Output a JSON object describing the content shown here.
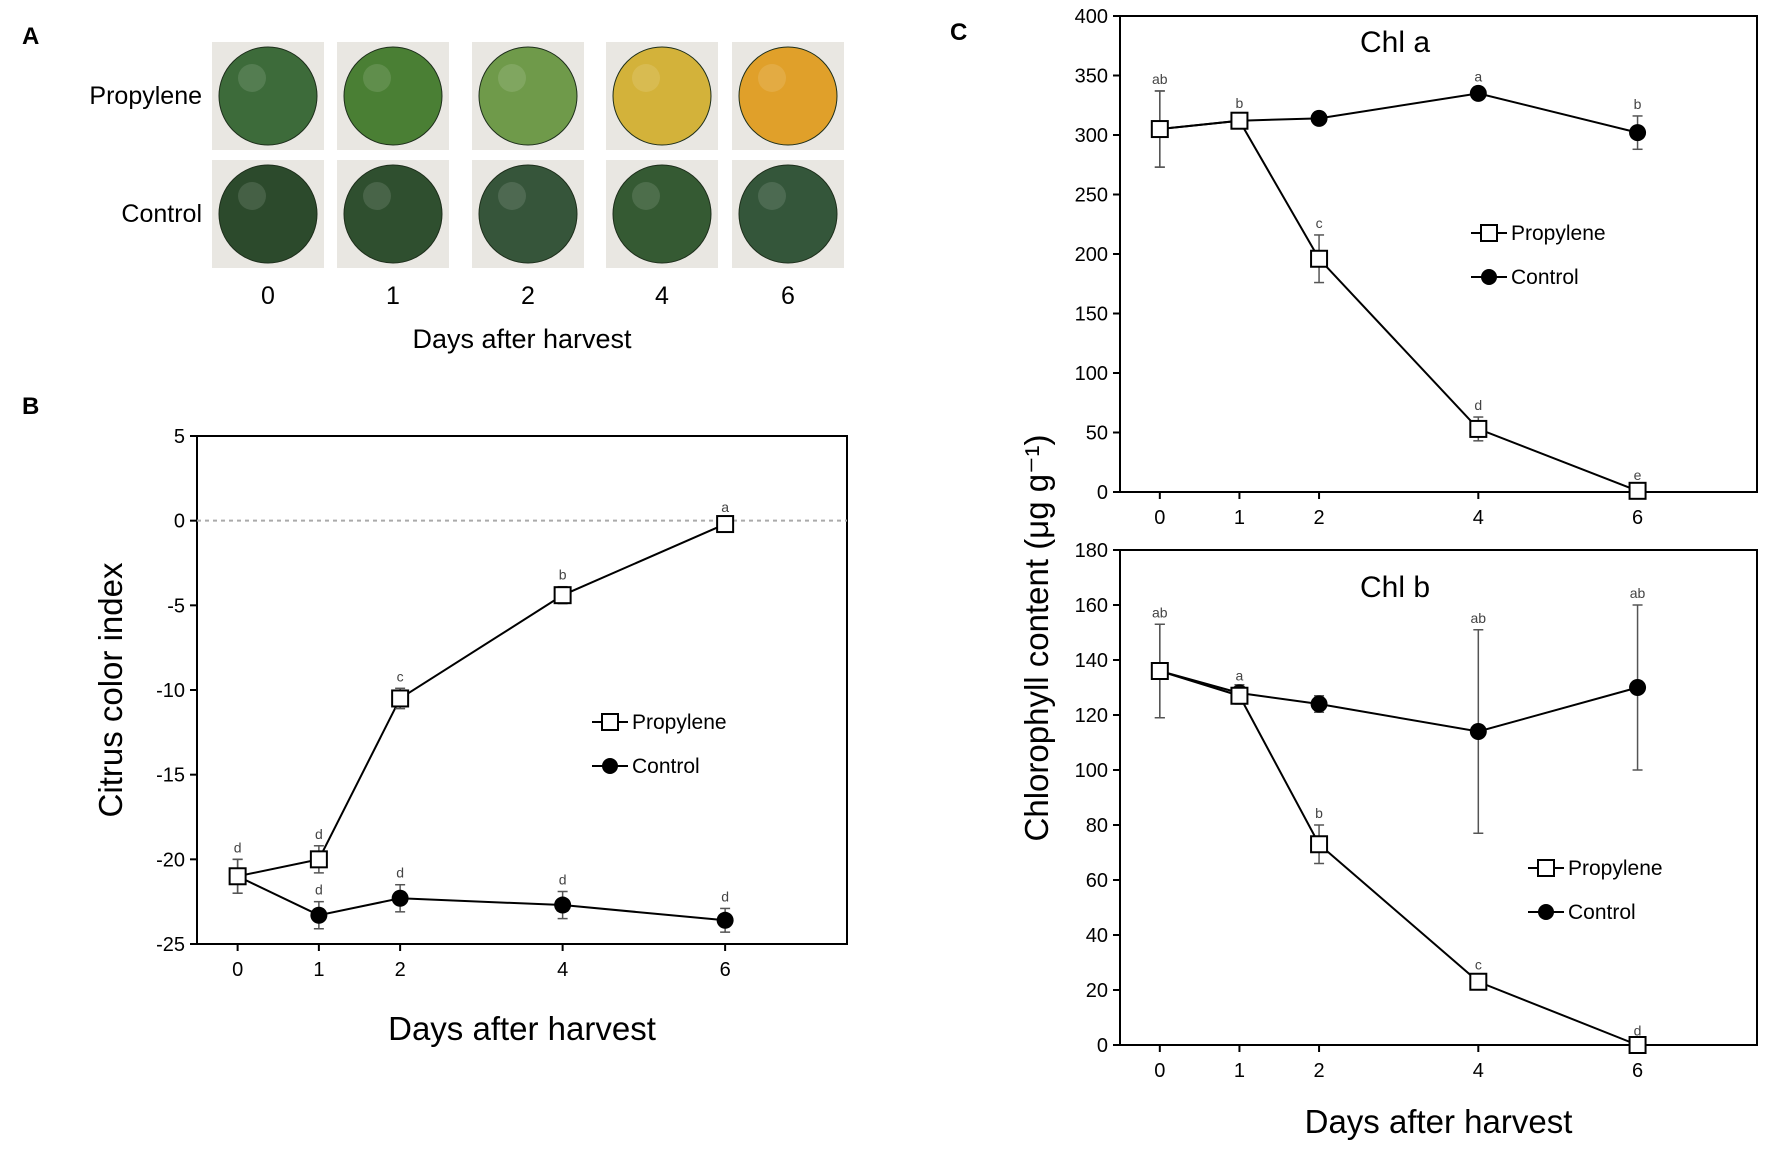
{
  "panel_a": {
    "letter": "A",
    "rows": [
      {
        "label": "Propylene",
        "fruit_colors": [
          "#3d6b3a",
          "#4a7f34",
          "#6f9a4a",
          "#d3b23a",
          "#e0a02a"
        ]
      },
      {
        "label": "Control",
        "fruit_colors": [
          "#2c4a2c",
          "#2f4f2f",
          "#36553a",
          "#355a33",
          "#34563a"
        ]
      }
    ],
    "days": [
      "0",
      "1",
      "2",
      "4",
      "6"
    ],
    "xlabel": "Days after harvest"
  },
  "chart_data": [
    {
      "id": "B",
      "letter": "B",
      "type": "line",
      "title": "",
      "xlabel": "Days after harvest",
      "ylabel": "Citrus color index",
      "x": [
        0,
        1,
        2,
        4,
        6
      ],
      "xticks": [
        "0",
        "1",
        "2",
        "4",
        "6"
      ],
      "ylim": [
        -25,
        5
      ],
      "yticks": [
        "5",
        "0",
        "-5",
        "-10",
        "-15",
        "-20",
        "-25"
      ],
      "reference_line": 0,
      "legend_position": "center-right",
      "series": [
        {
          "name": "Propylene",
          "marker": "open-square",
          "values": [
            -21,
            -20,
            -10.5,
            -4.4,
            -0.2
          ],
          "errors": [
            1.0,
            0.8,
            0.6,
            0.5,
            0.3
          ],
          "letters": [
            "d",
            "d",
            "c",
            "b",
            "a"
          ]
        },
        {
          "name": "Control",
          "marker": "filled-circle",
          "values": [
            -21,
            -23.3,
            -22.3,
            -22.7,
            -23.6
          ],
          "errors": [
            1.0,
            0.8,
            0.8,
            0.8,
            0.7
          ],
          "letters": [
            "",
            "d",
            "d",
            "d",
            "d"
          ]
        }
      ]
    },
    {
      "id": "Ca",
      "letter": "C",
      "type": "line",
      "title": "Chl a",
      "xlabel": "",
      "ylabel": "",
      "x": [
        0,
        1,
        2,
        4,
        6
      ],
      "xticks": [
        "0",
        "1",
        "2",
        "4",
        "6"
      ],
      "ylim": [
        0,
        400
      ],
      "yticks": [
        "400",
        "350",
        "300",
        "250",
        "200",
        "150",
        "100",
        "50",
        "0"
      ],
      "legend_position": "center-right",
      "series": [
        {
          "name": "Propylene",
          "marker": "open-square",
          "values": [
            305,
            312,
            196,
            53,
            1
          ],
          "errors": [
            32,
            5,
            20,
            10,
            3
          ],
          "letters": [
            "ab",
            "b",
            "c",
            "d",
            "e"
          ]
        },
        {
          "name": "Control",
          "marker": "filled-circle",
          "values": [
            305,
            312,
            314,
            335,
            302
          ],
          "errors": [
            32,
            5,
            5,
            4,
            14
          ],
          "letters": [
            "",
            "",
            "",
            "a",
            "b"
          ]
        }
      ]
    },
    {
      "id": "Cb",
      "letter": "",
      "type": "line",
      "title": "Chl b",
      "xlabel": "Days after harvest",
      "ylabel": "",
      "x": [
        0,
        1,
        2,
        4,
        6
      ],
      "xticks": [
        "0",
        "1",
        "2",
        "4",
        "6"
      ],
      "ylim": [
        0,
        180
      ],
      "yticks": [
        "180",
        "160",
        "140",
        "120",
        "100",
        "80",
        "60",
        "40",
        "20",
        "0"
      ],
      "legend_position": "lower-right",
      "series": [
        {
          "name": "Propylene",
          "marker": "open-square",
          "values": [
            136,
            127,
            73,
            23,
            0
          ],
          "errors": [
            17,
            3,
            7,
            2,
            1
          ],
          "letters": [
            "ab",
            "a",
            "b",
            "c",
            "d"
          ]
        },
        {
          "name": "Control",
          "marker": "filled-circle",
          "values": [
            136,
            128,
            124,
            114,
            130
          ],
          "errors": [
            17,
            3,
            3,
            37,
            30
          ],
          "letters": [
            "",
            "",
            "",
            "ab",
            "ab"
          ]
        }
      ]
    }
  ],
  "shared_ylabel_c": "Chlorophyll content (μg g⁻¹)"
}
